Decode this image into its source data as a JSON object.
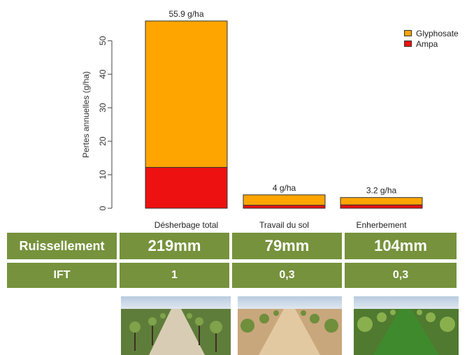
{
  "chart_data": {
    "type": "bar",
    "stacked": true,
    "categories": [
      "Désherbage total",
      "Travail du sol",
      "Enherbement"
    ],
    "series": [
      {
        "name": "Ampa",
        "color": "#ee1111",
        "values": [
          12.2,
          0.9,
          1.0
        ]
      },
      {
        "name": "Glyphosate",
        "color": "#ffa500",
        "values": [
          43.7,
          3.1,
          2.2
        ]
      }
    ],
    "totals_labels": [
      "55.9 g/ha",
      "4 g/ha",
      "3.2 g/ha"
    ],
    "totals": [
      55.9,
      4,
      3.2
    ],
    "ylabel": "Pertes annuelles (g/ha)",
    "xlabel": "",
    "ylim": [
      0,
      55.9
    ],
    "yticks": [
      0,
      10,
      20,
      30,
      40,
      50
    ],
    "legend_position": "top-right",
    "grid": false
  },
  "legend": {
    "items": [
      {
        "label": "Glyphosate",
        "color": "#ffa500"
      },
      {
        "label": "Ampa",
        "color": "#ee1111"
      }
    ]
  },
  "table": {
    "rows": [
      {
        "header": "Ruissellement",
        "values": [
          "219mm",
          "79mm",
          "104mm"
        ]
      },
      {
        "header": "IFT",
        "values": [
          "1",
          "0,3",
          "0,3"
        ]
      }
    ],
    "color": "#76923c"
  },
  "photos": [
    {
      "icon": "vineyard-bare-soil-photo"
    },
    {
      "icon": "vineyard-tilled-soil-photo"
    },
    {
      "icon": "vineyard-grass-cover-photo"
    }
  ]
}
